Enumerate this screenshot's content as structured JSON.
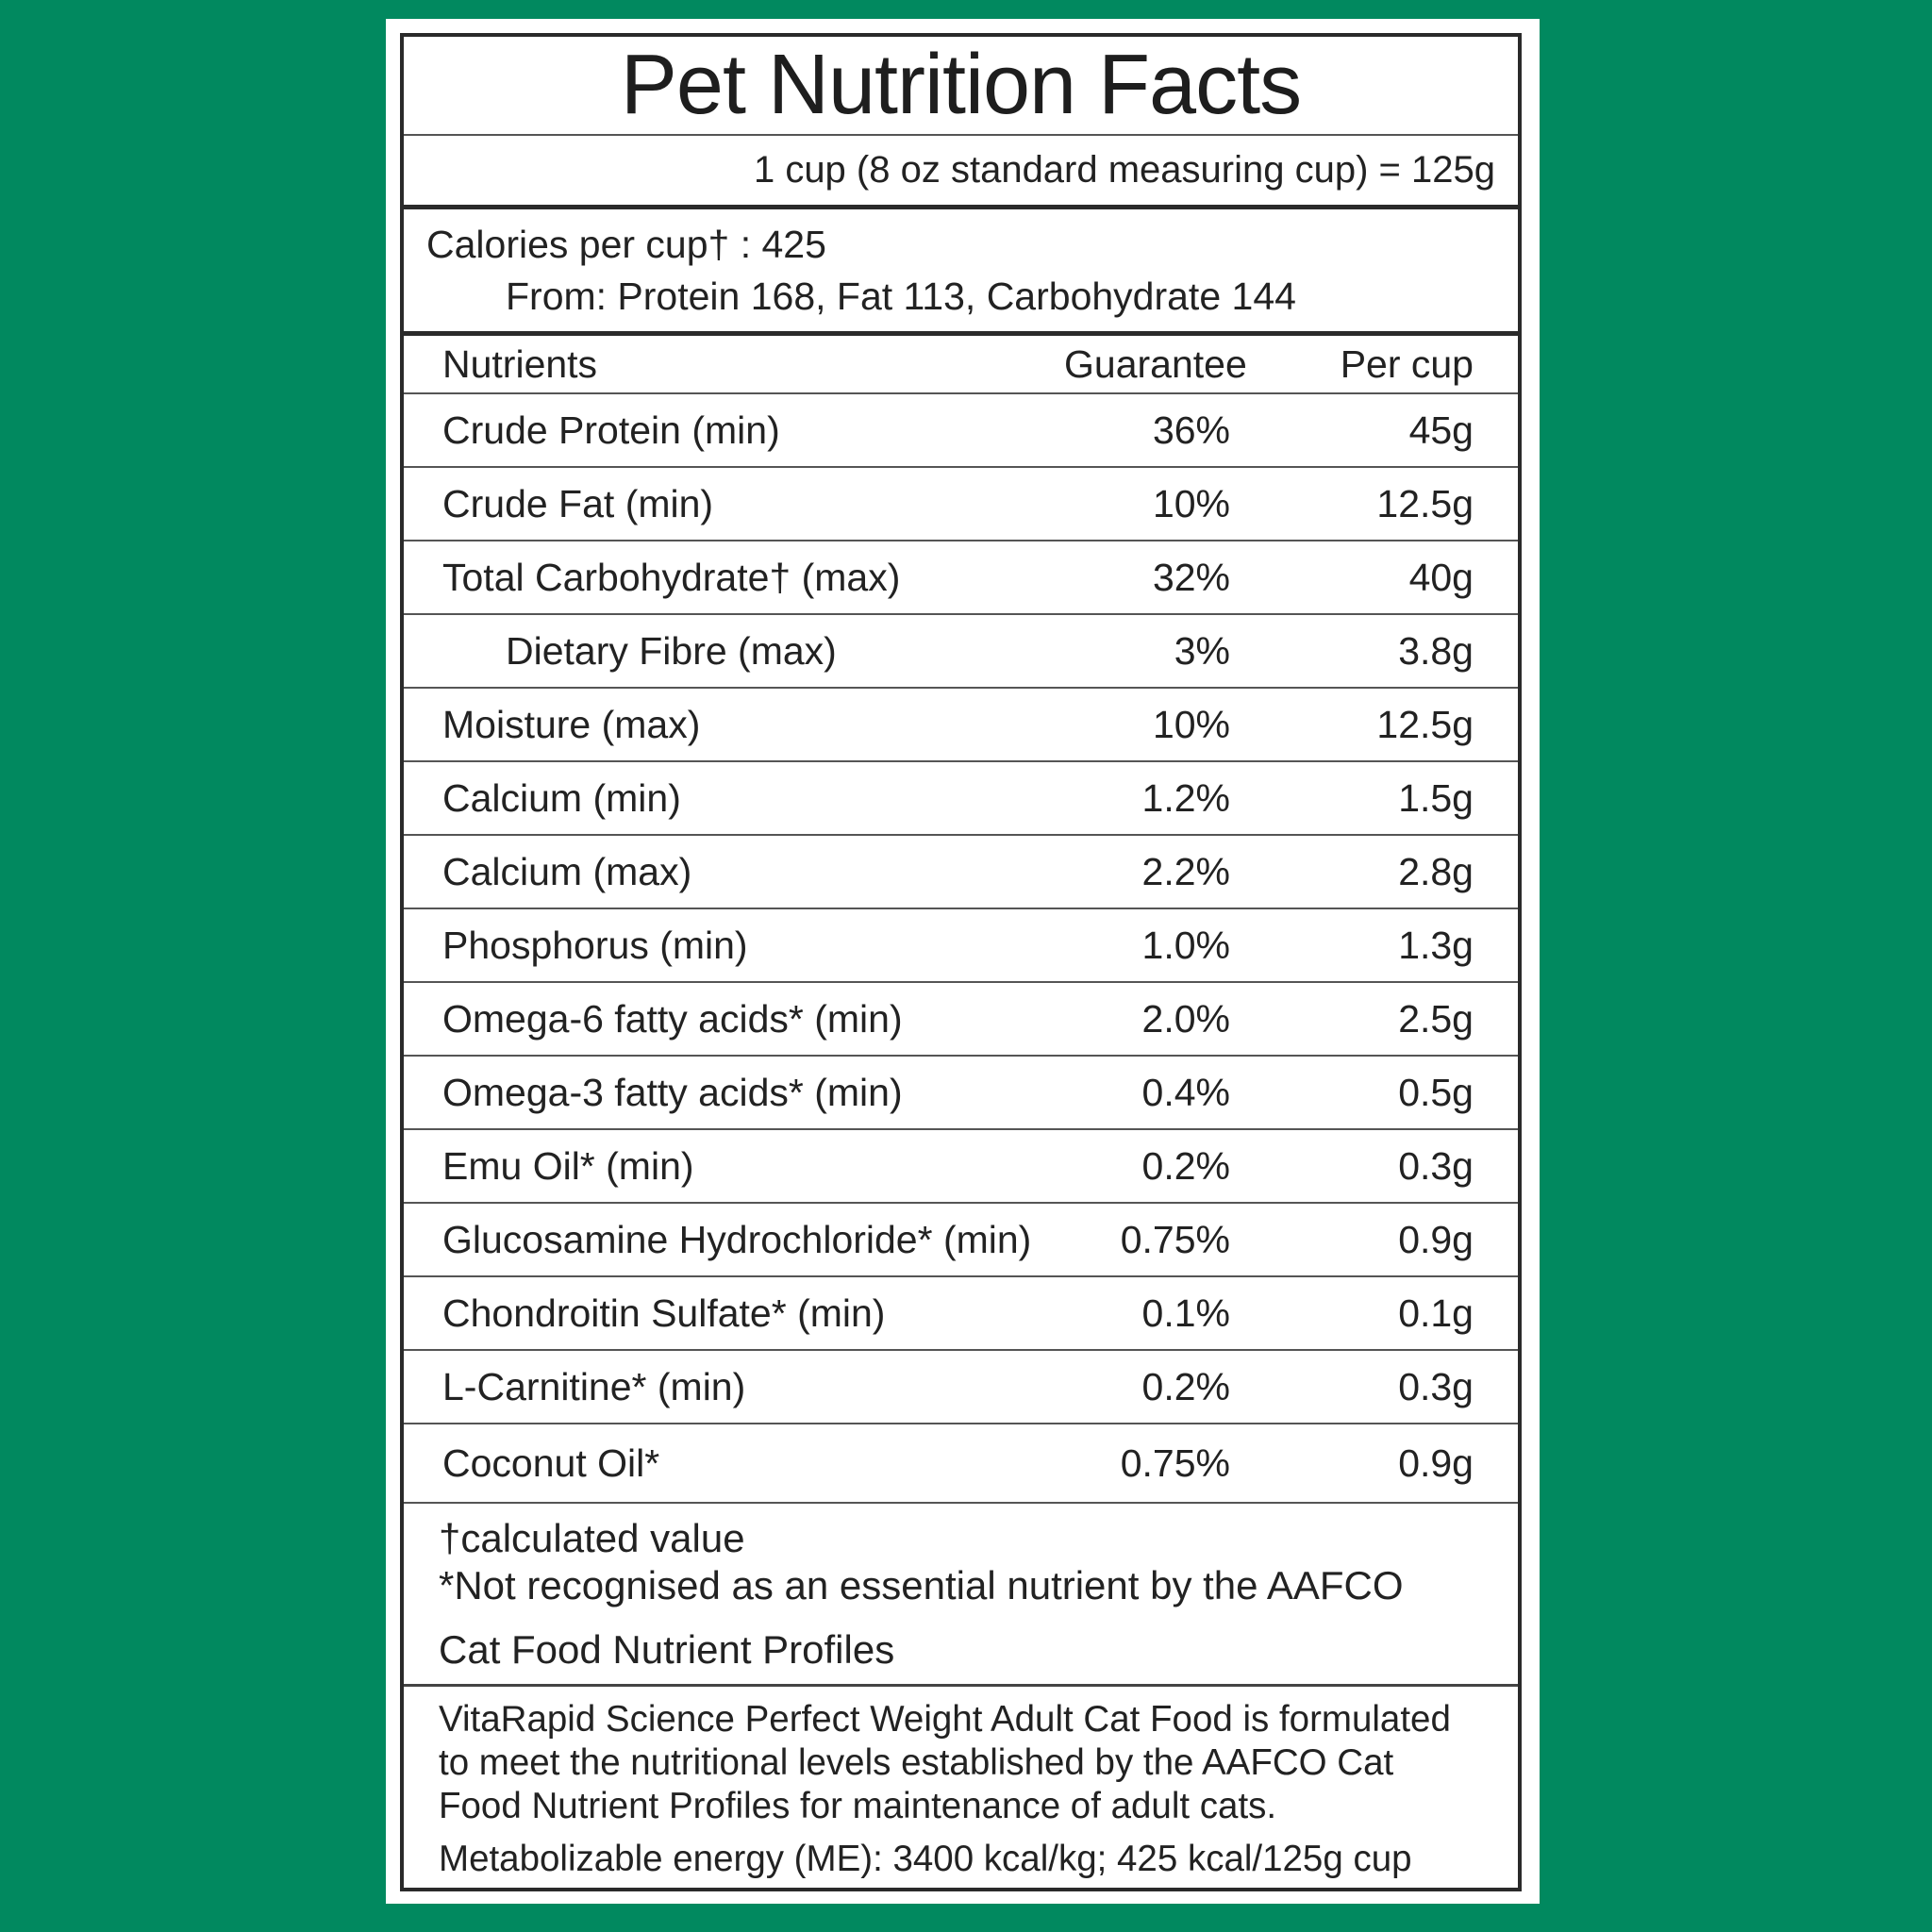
{
  "colors": {
    "background": "#01895f",
    "card": "#ffffff",
    "text": "#222222"
  },
  "title": "Pet Nutrition Facts",
  "serving": "1 cup (8 oz standard measuring cup) = 125g",
  "calories": {
    "line1": "Calories per cup† : 425",
    "line2": "From: Protein 168, Fat 113, Carbohydrate 144"
  },
  "table": {
    "headers": [
      "Nutrients",
      "Guarantee",
      "Per cup"
    ],
    "rows": [
      {
        "name": "Crude Protein (min)",
        "guarantee": "36%",
        "per_cup": "45g"
      },
      {
        "name": "Crude Fat (min)",
        "guarantee": "10%",
        "per_cup": "12.5g"
      },
      {
        "name": "Total Carbohydrate† (max)",
        "guarantee": "32%",
        "per_cup": "40g"
      },
      {
        "name": "Dietary Fibre (max)",
        "guarantee": "3%",
        "per_cup": "3.8g",
        "indent": true
      },
      {
        "name": "Moisture (max)",
        "guarantee": "10%",
        "per_cup": "12.5g"
      },
      {
        "name": "Calcium (min)",
        "guarantee": "1.2%",
        "per_cup": "1.5g"
      },
      {
        "name": "Calcium (max)",
        "guarantee": "2.2%",
        "per_cup": "2.8g"
      },
      {
        "name": "Phosphorus (min)",
        "guarantee": "1.0%",
        "per_cup": "1.3g"
      },
      {
        "name": "Omega-6 fatty acids* (min)",
        "guarantee": "2.0%",
        "per_cup": "2.5g"
      },
      {
        "name": "Omega-3 fatty acids* (min)",
        "guarantee": "0.4%",
        "per_cup": "0.5g"
      },
      {
        "name": "Emu Oil* (min)",
        "guarantee": "0.2%",
        "per_cup": "0.3g"
      },
      {
        "name": "Glucosamine Hydrochloride* (min)",
        "guarantee": "0.75%",
        "per_cup": "0.9g"
      },
      {
        "name": "Chondroitin Sulfate* (min)",
        "guarantee": "0.1%",
        "per_cup": "0.1g"
      },
      {
        "name": "L-Carnitine* (min)",
        "guarantee": "0.2%",
        "per_cup": "0.3g"
      },
      {
        "name": "Coconut Oil*",
        "guarantee": "0.75%",
        "per_cup": "0.9g"
      }
    ]
  },
  "notes": {
    "line1": "†calculated value",
    "line2": "*Not recognised as an essential nutrient by the AAFCO",
    "line3": "Cat Food Nutrient Profiles"
  },
  "description": {
    "line1": "VitaRapid Science Perfect Weight Adult Cat Food is formulated",
    "line2": "to meet the nutritional levels established by the AAFCO Cat",
    "line3": "Food Nutrient Profiles for maintenance of adult cats.",
    "energy": "Metabolizable energy (ME): 3400 kcal/kg; 425 kcal/125g cup"
  }
}
